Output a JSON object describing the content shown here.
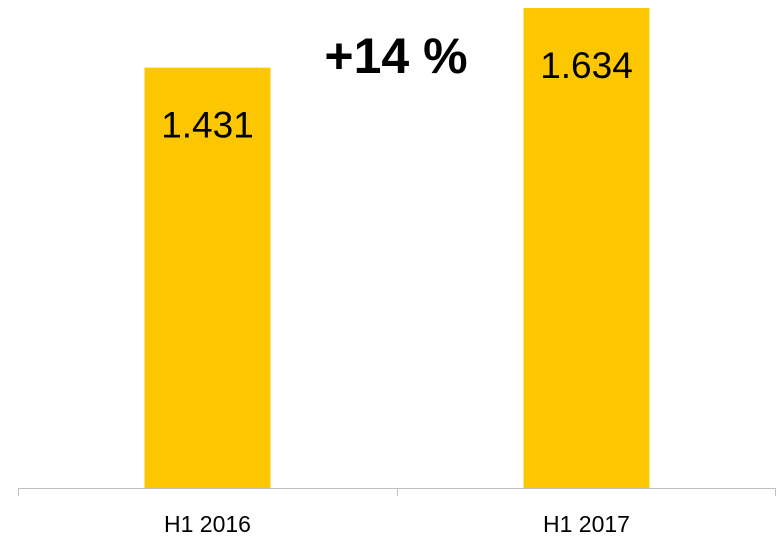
{
  "chart_data": {
    "type": "bar",
    "categories": [
      "H1 2016",
      "H1 2017"
    ],
    "values": [
      1.431,
      1.634
    ],
    "color": "#fcc700",
    "annotation": "+14 %",
    "annotation_color": "#f7c400"
  }
}
